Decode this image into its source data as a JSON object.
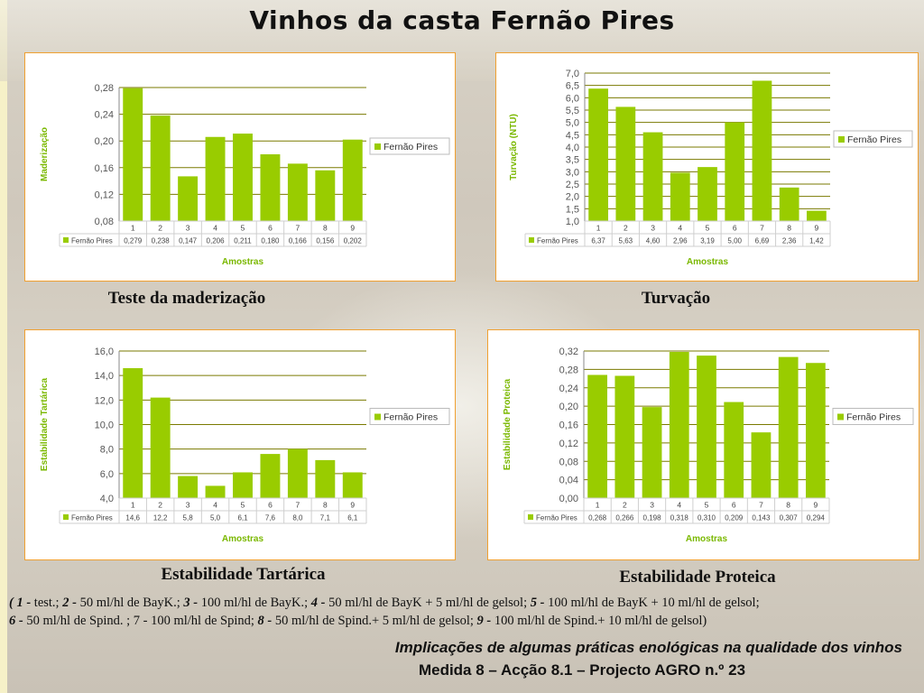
{
  "page": {
    "title": "Vinhos da casta Fernão Pires",
    "notes": [
      {
        "n": "( 1 -",
        "t": " test.; "
      },
      {
        "n": "2 -",
        "t": " 50 ml/hl de BayK.; "
      },
      {
        "n": "3 -",
        "t": " 100 ml/hl de BayK.; "
      },
      {
        "n": "4 -",
        "t": " 50 ml/hl de BayK + 5 ml/hl de gelsol; "
      },
      {
        "n": "5 -",
        "t": " 100 ml/hl de BayK + 10 ml/hl de gelsol;"
      }
    ],
    "notes_line2": [
      {
        "n": "6 -",
        "t": " 50 ml/hl de Spind. ; 7 - 100 ml/hl de Spind; "
      },
      {
        "n": "8 -",
        "t": " 50 ml/hl de Spind.+ 5 ml/hl de gelsol; "
      },
      {
        "n": "9 -",
        "t": " 100 ml/hl de Spind.+ 10 ml/hl de gelsol)"
      }
    ],
    "footer_line1": "Implicações de algumas práticas enológicas na qualidade dos vinhos",
    "footer_line2": "Medida 8 – Acção 8.1 – Projecto AGRO n.º 23",
    "colors": {
      "bar": "#99cc00",
      "label": "#7ab800",
      "border": "#f0a030"
    }
  },
  "chart_data": [
    {
      "type": "bar",
      "caption": "Teste da maderização",
      "ylabel": "Maderização",
      "xlabel": "Amostras",
      "series_name": "Fernão Pires",
      "legend": "Fernão Pires",
      "categories": [
        "1",
        "2",
        "3",
        "4",
        "5",
        "6",
        "7",
        "8",
        "9"
      ],
      "values": [
        0.279,
        0.238,
        0.147,
        0.206,
        0.211,
        0.18,
        0.166,
        0.156,
        0.202
      ],
      "value_labels": [
        "0,279",
        "0,238",
        "0,147",
        "0,206",
        "0,211",
        "0,180",
        "0,166",
        "0,156",
        "0,202"
      ],
      "ylim": [
        0.08,
        0.28
      ],
      "yticks": [
        0.08,
        0.12,
        0.16,
        0.2,
        0.24,
        0.28
      ],
      "ytick_labels": [
        "0,08",
        "0,12",
        "0,16",
        "0,20",
        "0,24",
        "0,28"
      ],
      "grid": true,
      "legend_position": "right"
    },
    {
      "type": "bar",
      "caption": "Turvação",
      "ylabel": "Turvação   (NTU)",
      "xlabel": "Amostras",
      "series_name": "Fernão Pires",
      "legend": "Fernão Pires",
      "categories": [
        "1",
        "2",
        "3",
        "4",
        "5",
        "6",
        "7",
        "8",
        "9"
      ],
      "values": [
        6.37,
        5.63,
        4.6,
        2.96,
        3.19,
        5.0,
        6.69,
        2.36,
        1.42
      ],
      "value_labels": [
        "6,37",
        "5,63",
        "4,60",
        "2,96",
        "3,19",
        "5,00",
        "6,69",
        "2,36",
        "1,42"
      ],
      "ylim": [
        1.0,
        7.0
      ],
      "yticks": [
        1.0,
        1.5,
        2.0,
        2.5,
        3.0,
        3.5,
        4.0,
        4.5,
        5.0,
        5.5,
        6.0,
        6.5,
        7.0
      ],
      "ytick_labels": [
        "1,0",
        "1,5",
        "2,0",
        "2,5",
        "3,0",
        "3,5",
        "4,0",
        "4,5",
        "5,0",
        "5,5",
        "6,0",
        "6,5",
        "7,0"
      ],
      "grid": true,
      "legend_position": "right"
    },
    {
      "type": "bar",
      "caption": "Estabilidade Tartárica",
      "ylabel": "Estabilidade Tartárica",
      "xlabel": "Amostras",
      "series_name": "Fernão Pires",
      "legend": "Fernão Pires",
      "categories": [
        "1",
        "2",
        "3",
        "4",
        "5",
        "6",
        "7",
        "8",
        "9"
      ],
      "values": [
        14.6,
        12.2,
        5.8,
        5.0,
        6.1,
        7.6,
        8.0,
        7.1,
        6.1
      ],
      "value_labels": [
        "14,6",
        "12,2",
        "5,8",
        "5,0",
        "6,1",
        "7,6",
        "8,0",
        "7,1",
        "6,1"
      ],
      "ylim": [
        4.0,
        16.0
      ],
      "yticks": [
        4.0,
        6.0,
        8.0,
        10.0,
        12.0,
        14.0,
        16.0
      ],
      "ytick_labels": [
        "4,0",
        "6,0",
        "8,0",
        "10,0",
        "12,0",
        "14,0",
        "16,0"
      ],
      "grid": true,
      "legend_position": "right"
    },
    {
      "type": "bar",
      "caption": "Estabilidade  Proteica",
      "ylabel": "Estabilidade Proteica",
      "xlabel": "Amostras",
      "series_name": "Fernão Pires",
      "legend": "Fernão Pires",
      "categories": [
        "1",
        "2",
        "3",
        "4",
        "5",
        "6",
        "7",
        "8",
        "9"
      ],
      "values": [
        0.268,
        0.266,
        0.198,
        0.318,
        0.31,
        0.209,
        0.143,
        0.307,
        0.294
      ],
      "value_labels": [
        "0,268",
        "0,266",
        "0,198",
        "0,318",
        "0,310",
        "0,209",
        "0,143",
        "0,307",
        "0,294"
      ],
      "ylim": [
        0.0,
        0.32
      ],
      "yticks": [
        0.0,
        0.04,
        0.08,
        0.12,
        0.16,
        0.2,
        0.24,
        0.28,
        0.32
      ],
      "ytick_labels": [
        "0,00",
        "0,04",
        "0,08",
        "0,12",
        "0,16",
        "0,20",
        "0,24",
        "0,28",
        "0,32"
      ],
      "grid": true,
      "legend_position": "right"
    }
  ]
}
